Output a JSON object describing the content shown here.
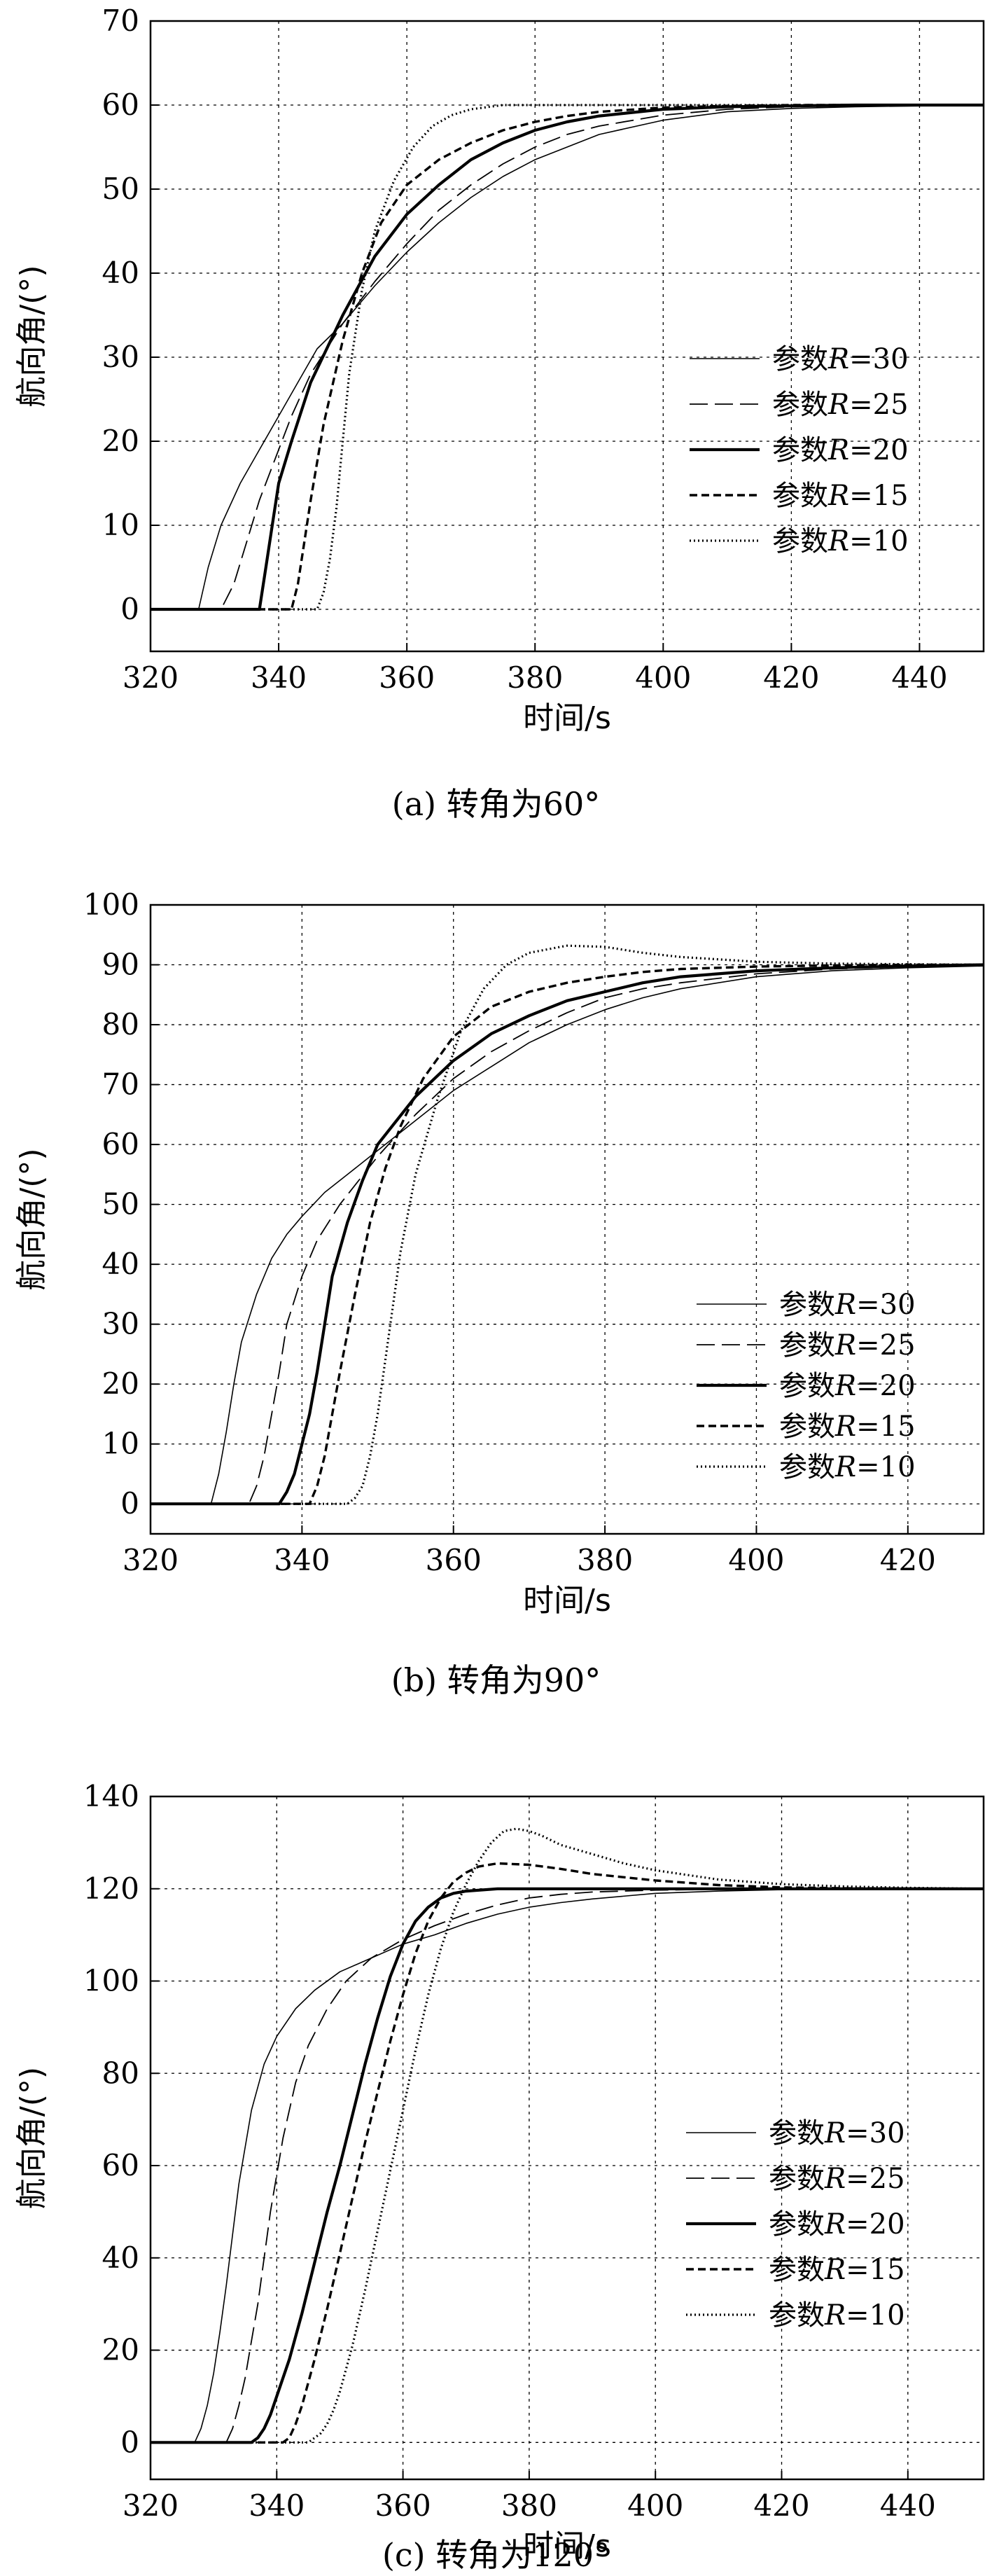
{
  "chart_data": [
    {
      "type": "line",
      "caption": "(a) 转角为60°",
      "xlabel": "时间/s",
      "ylabel": "航向角/(°)",
      "xlim": [
        320,
        450
      ],
      "ylim": [
        -5,
        70
      ],
      "xticks": [
        320,
        340,
        360,
        380,
        400,
        420,
        440
      ],
      "yticks": [
        0,
        10,
        20,
        30,
        40,
        50,
        60,
        70
      ],
      "grid": true,
      "legend_position": "right",
      "series": [
        {
          "name": "参数R=30",
          "style": "thin-solid",
          "x": [
            320,
            327.5,
            329,
            331,
            334,
            337,
            340,
            343,
            346,
            350,
            355,
            360,
            365,
            370,
            375,
            380,
            385,
            390,
            400,
            410,
            420,
            430,
            440,
            450
          ],
          "y": [
            0,
            0,
            5,
            10,
            15,
            19,
            23,
            27,
            31,
            34,
            38.5,
            42.5,
            46,
            49,
            51.5,
            53.5,
            55,
            56.5,
            58.2,
            59.2,
            59.6,
            59.8,
            59.9,
            60
          ]
        },
        {
          "name": "参数R=25",
          "style": "dashed",
          "x": [
            320,
            331,
            333,
            335,
            337,
            339,
            342,
            345,
            350,
            355,
            360,
            365,
            370,
            375,
            380,
            385,
            390,
            400,
            410,
            420,
            430,
            440,
            450
          ],
          "y": [
            0,
            0,
            3,
            8,
            13,
            17,
            23,
            28,
            34,
            39,
            43.5,
            47.5,
            50.5,
            53,
            55,
            56.5,
            57.5,
            58.8,
            59.5,
            59.8,
            59.9,
            60,
            60
          ]
        },
        {
          "name": "参数R=20",
          "style": "thick-solid",
          "x": [
            320,
            337,
            338,
            339,
            340,
            342,
            345,
            350,
            355,
            360,
            365,
            370,
            375,
            380,
            385,
            390,
            400,
            410,
            420,
            430,
            440,
            450
          ],
          "y": [
            0,
            0,
            5,
            10,
            15,
            20,
            27,
            35,
            42,
            47,
            50.5,
            53.5,
            55.5,
            57,
            58,
            58.7,
            59.5,
            59.8,
            59.9,
            60,
            60,
            60
          ]
        },
        {
          "name": "参数R=15",
          "style": "short-dashed",
          "x": [
            320,
            342,
            343,
            344,
            345,
            347,
            350,
            353,
            356,
            360,
            365,
            370,
            375,
            380,
            385,
            390,
            400,
            410,
            420,
            430,
            440,
            450
          ],
          "y": [
            0,
            0,
            3,
            8,
            13,
            22,
            32,
            40,
            46,
            50.5,
            53.5,
            55.5,
            57,
            58,
            58.7,
            59.2,
            59.7,
            59.9,
            60,
            60,
            60,
            60
          ]
        },
        {
          "name": "参数R=10",
          "style": "dotted",
          "x": [
            320,
            346,
            347,
            348,
            349,
            350,
            351,
            353,
            355,
            358,
            361,
            364,
            367,
            370,
            375,
            380,
            390,
            400,
            420,
            450
          ],
          "y": [
            0,
            0,
            2,
            6,
            12,
            20,
            28,
            38,
            45,
            51,
            55,
            57.5,
            58.8,
            59.5,
            60,
            60,
            60,
            60,
            60,
            60
          ]
        }
      ]
    },
    {
      "type": "line",
      "caption": "(b) 转角为90°",
      "xlabel": "时间/s",
      "ylabel": "航向角/(°)",
      "xlim": [
        320,
        430
      ],
      "ylim": [
        -5,
        100
      ],
      "xticks": [
        320,
        340,
        360,
        380,
        400,
        420
      ],
      "yticks": [
        0,
        10,
        20,
        30,
        40,
        50,
        60,
        70,
        80,
        90,
        100
      ],
      "grid": true,
      "legend_position": "lower-right",
      "series": [
        {
          "name": "参数R=30",
          "style": "thin-solid",
          "x": [
            320,
            328,
            329,
            330,
            331,
            332,
            334,
            336,
            338,
            340,
            343,
            346,
            350,
            355,
            360,
            365,
            370,
            375,
            380,
            385,
            390,
            400,
            410,
            420,
            430
          ],
          "y": [
            0,
            0,
            5,
            12,
            20,
            27,
            35,
            41,
            45,
            48,
            52,
            55,
            59,
            64,
            69,
            73,
            77,
            80,
            82.5,
            84.5,
            86,
            88,
            89,
            89.5,
            89.8
          ]
        },
        {
          "name": "参数R=25",
          "style": "dashed",
          "x": [
            320,
            333,
            334,
            335,
            336,
            337,
            338,
            340,
            342,
            345,
            350,
            355,
            360,
            365,
            370,
            375,
            380,
            385,
            390,
            400,
            410,
            420,
            430
          ],
          "y": [
            0,
            0,
            3,
            8,
            15,
            22,
            30,
            38,
            44,
            50,
            58,
            65,
            71,
            75.5,
            79,
            82,
            84.5,
            86,
            87,
            88.5,
            89.3,
            89.7,
            89.9
          ]
        },
        {
          "name": "参数R=20",
          "style": "thick-solid",
          "x": [
            320,
            337,
            338,
            339,
            340,
            341,
            342,
            343,
            344,
            346,
            348,
            350,
            355,
            360,
            365,
            370,
            375,
            380,
            385,
            390,
            400,
            410,
            420,
            430
          ],
          "y": [
            0,
            0,
            2,
            5,
            10,
            15,
            22,
            30,
            38,
            47,
            54,
            60,
            68,
            74,
            78.5,
            81.5,
            84,
            85.5,
            87,
            88,
            89,
            89.5,
            89.8,
            90
          ]
        },
        {
          "name": "参数R=15",
          "style": "short-dashed",
          "x": [
            320,
            341,
            342,
            343,
            344,
            345,
            347,
            349,
            351,
            353,
            356,
            360,
            365,
            370,
            375,
            380,
            385,
            390,
            400,
            410,
            420,
            430
          ],
          "y": [
            0,
            0,
            3,
            8,
            15,
            22,
            35,
            47,
            56,
            63,
            71,
            78,
            83,
            85.5,
            87,
            88,
            88.8,
            89.3,
            89.7,
            89.9,
            90,
            90
          ]
        },
        {
          "name": "参数R=10",
          "style": "dotted",
          "x": [
            320,
            346,
            347,
            348,
            349,
            350,
            351,
            352,
            353,
            355,
            358,
            361,
            364,
            367,
            370,
            375,
            380,
            385,
            390,
            400,
            410,
            420,
            430
          ],
          "y": [
            0,
            0,
            1,
            3,
            8,
            15,
            24,
            33,
            42,
            55,
            68,
            79,
            86,
            90,
            92,
            93.2,
            93,
            92,
            91.3,
            90.5,
            90.2,
            90.1,
            90
          ]
        }
      ]
    },
    {
      "type": "line",
      "caption": "(c) 转角为120°",
      "xlabel": "时间/s",
      "ylabel": "航向角/(°)",
      "xlim": [
        320,
        452
      ],
      "ylim": [
        -8,
        140
      ],
      "xticks": [
        320,
        340,
        360,
        380,
        400,
        420,
        440
      ],
      "yticks": [
        0,
        20,
        40,
        60,
        80,
        100,
        120,
        140
      ],
      "grid": true,
      "legend_position": "lower-right",
      "series": [
        {
          "name": "参数R=30",
          "style": "thin-solid",
          "x": [
            320,
            327,
            328,
            329,
            330,
            331,
            332,
            333,
            334,
            336,
            338,
            340,
            343,
            346,
            350,
            355,
            360,
            365,
            370,
            375,
            380,
            385,
            390,
            400,
            410,
            420,
            430,
            440,
            452
          ],
          "y": [
            0,
            0,
            3,
            8,
            15,
            24,
            34,
            45,
            56,
            72,
            82,
            88,
            94,
            98,
            102,
            105,
            108,
            110,
            112.5,
            114.5,
            116,
            117,
            117.8,
            119,
            119.5,
            119.8,
            120,
            120,
            120
          ]
        },
        {
          "name": "参数R=25",
          "style": "dashed",
          "x": [
            320,
            332,
            333,
            334,
            335,
            336,
            337,
            338,
            339,
            341,
            343,
            345,
            348,
            351,
            355,
            360,
            365,
            370,
            375,
            380,
            385,
            390,
            400,
            410,
            420,
            430,
            440,
            452
          ],
          "y": [
            0,
            0,
            3,
            8,
            14,
            22,
            30,
            40,
            50,
            66,
            78,
            86,
            94,
            100,
            105,
            109,
            112,
            114.5,
            116.5,
            118,
            118.8,
            119.3,
            119.7,
            119.9,
            120,
            120,
            120,
            120
          ]
        },
        {
          "name": "参数R=20",
          "style": "thick-solid",
          "x": [
            320,
            336,
            337,
            338,
            339,
            340,
            342,
            344,
            346,
            348,
            350,
            352,
            354,
            356,
            358,
            360,
            362,
            364,
            366,
            368,
            370,
            375,
            380,
            390,
            400,
            420,
            452
          ],
          "y": [
            0,
            0,
            1,
            3,
            6,
            10,
            18,
            28,
            39,
            50,
            60,
            71,
            82,
            92,
            101,
            108,
            113,
            116,
            118,
            119,
            119.5,
            120,
            120,
            120,
            120,
            120,
            120
          ]
        },
        {
          "name": "参数R=15",
          "style": "short-dashed",
          "x": [
            320,
            341,
            342,
            343,
            344,
            346,
            348,
            350,
            352,
            354,
            356,
            358,
            360,
            362,
            364,
            366,
            368,
            370,
            372,
            375,
            380,
            385,
            390,
            400,
            410,
            420,
            430,
            452
          ],
          "y": [
            0,
            0,
            1,
            4,
            8,
            18,
            29,
            41,
            53,
            65,
            76,
            87,
            97,
            106,
            113,
            118,
            121.5,
            123.5,
            124.8,
            125.5,
            125.2,
            124.3,
            123.2,
            121.8,
            120.8,
            120.3,
            120.1,
            120
          ]
        },
        {
          "name": "参数R=10",
          "style": "dotted",
          "x": [
            320,
            345,
            346,
            347,
            348,
            349,
            350,
            352,
            354,
            356,
            358,
            360,
            362,
            364,
            366,
            368,
            370,
            372,
            374,
            376,
            378,
            380,
            382,
            385,
            390,
            395,
            400,
            410,
            420,
            430,
            440,
            452
          ],
          "y": [
            0,
            0,
            1,
            2,
            4,
            7,
            11,
            21,
            33,
            46,
            59,
            72,
            85,
            97,
            107,
            115,
            121,
            126,
            130,
            132.5,
            133,
            132.5,
            131.5,
            129.5,
            127.5,
            125.5,
            124,
            122,
            121,
            120.5,
            120.2,
            120
          ]
        }
      ]
    }
  ]
}
